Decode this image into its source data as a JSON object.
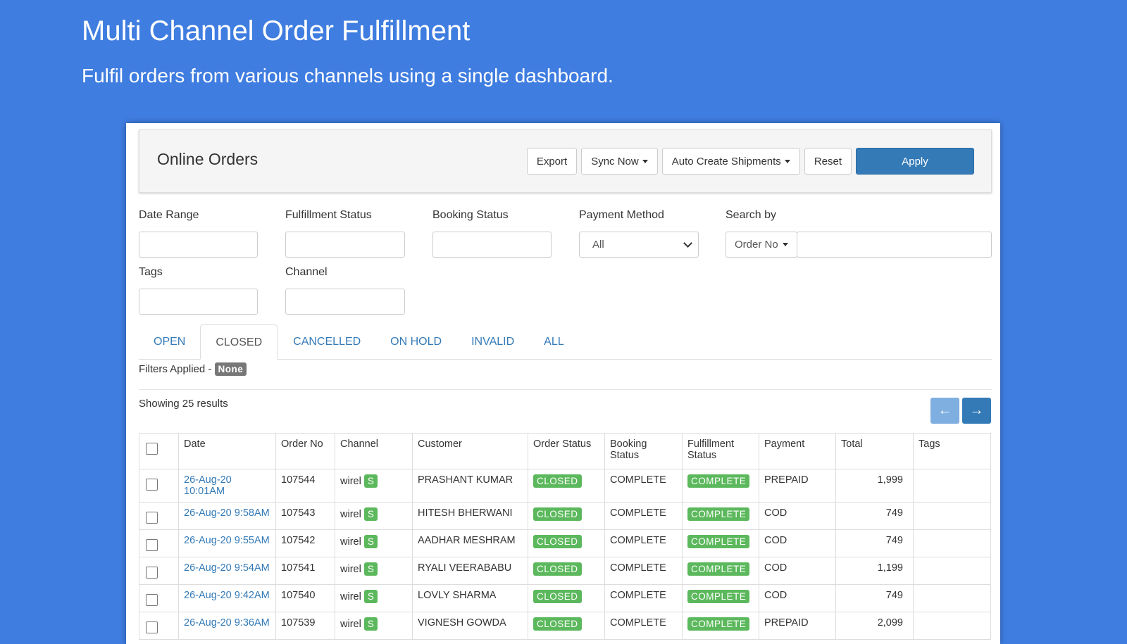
{
  "header": {
    "title": "Multi Channel Order Fulfillment",
    "subtitle": "Fulfil orders from various channels using a single dashboard."
  },
  "panel": {
    "title": "Online Orders",
    "buttons": {
      "export": "Export",
      "sync": "Sync Now",
      "auto": "Auto Create Shipments",
      "reset": "Reset",
      "apply": "Apply"
    }
  },
  "filters": {
    "date_range": "Date Range",
    "fulfillment_status": "Fulfillment Status",
    "booking_status": "Booking Status",
    "payment_method": {
      "label": "Payment Method",
      "value": "All"
    },
    "search_by": {
      "label": "Search by",
      "field": "Order No"
    },
    "tags": "Tags",
    "channel": "Channel"
  },
  "tabs": [
    "OPEN",
    "CLOSED",
    "CANCELLED",
    "ON HOLD",
    "INVALID",
    "ALL"
  ],
  "filters_applied": {
    "label": "Filters Applied -",
    "value": "None"
  },
  "results": "Showing 25 results",
  "table": {
    "columns": [
      "Date",
      "Order No",
      "Channel",
      "Customer",
      "Order Status",
      "Booking Status",
      "Fulfillment Status",
      "Payment",
      "Total",
      "Tags"
    ],
    "rows": [
      {
        "date": "26-Aug-20 10:01AM",
        "order_no": "107544",
        "channel": "wirel",
        "badge": "S",
        "customer": "PRASHANT KUMAR",
        "order_status": "CLOSED",
        "booking_status": "COMPLETE",
        "fulfillment_status": "COMPLETE",
        "payment": "PREPAID",
        "total": "1,999"
      },
      {
        "date": "26-Aug-20 9:58AM",
        "order_no": "107543",
        "channel": "wirel",
        "badge": "S",
        "customer": "HITESH BHERWANI",
        "order_status": "CLOSED",
        "booking_status": "COMPLETE",
        "fulfillment_status": "COMPLETE",
        "payment": "COD",
        "total": "749"
      },
      {
        "date": "26-Aug-20 9:55AM",
        "order_no": "107542",
        "channel": "wirel",
        "badge": "S",
        "customer": "AADHAR MESHRAM",
        "order_status": "CLOSED",
        "booking_status": "COMPLETE",
        "fulfillment_status": "COMPLETE",
        "payment": "COD",
        "total": "749"
      },
      {
        "date": "26-Aug-20 9:54AM",
        "order_no": "107541",
        "channel": "wirel",
        "badge": "S",
        "customer": "RYALI VEERABABU",
        "order_status": "CLOSED",
        "booking_status": "COMPLETE",
        "fulfillment_status": "COMPLETE",
        "payment": "COD",
        "total": "1,199"
      },
      {
        "date": "26-Aug-20 9:42AM",
        "order_no": "107540",
        "channel": "wirel",
        "badge": "S",
        "customer": "LOVLY SHARMA",
        "order_status": "CLOSED",
        "booking_status": "COMPLETE",
        "fulfillment_status": "COMPLETE",
        "payment": "COD",
        "total": "749"
      },
      {
        "date": "26-Aug-20 9:36AM",
        "order_no": "107539",
        "channel": "wirel",
        "badge": "S",
        "customer": "VIGNESH GOWDA",
        "order_status": "CLOSED",
        "booking_status": "COMPLETE",
        "fulfillment_status": "COMPLETE",
        "payment": "PREPAID",
        "total": "2,099"
      }
    ]
  }
}
